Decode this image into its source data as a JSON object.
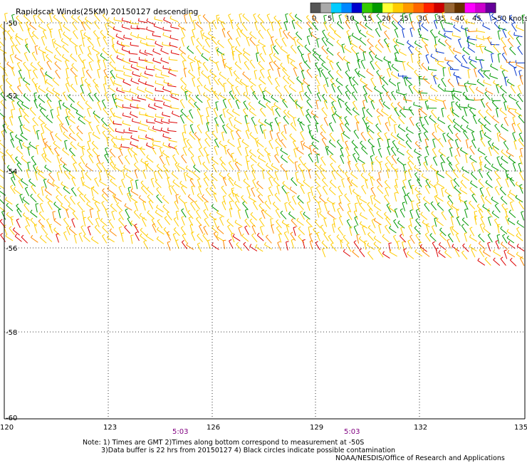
{
  "title": "Rapidscat Winds(25KM) 20150127 descending",
  "legend": {
    "swatch_colors": [
      "#555555",
      "#aaaaaa",
      "#00ccff",
      "#0088ff",
      "#0000cc",
      "#33cc00",
      "#009900",
      "#ffff33",
      "#ffcc00",
      "#ff9900",
      "#ff6600",
      "#ff2200",
      "#cc0000",
      "#996633",
      "#663300",
      "#ff00ff",
      "#cc00cc",
      "#660099"
    ],
    "labels": [
      "0",
      "5",
      "10",
      "15",
      "20",
      "25",
      "30",
      "35",
      "40",
      "45",
      ">50 knots"
    ]
  },
  "axes": {
    "lon_labels": [
      "120",
      "123",
      "126",
      "129",
      "132",
      "135"
    ],
    "lat_labels": [
      "-50",
      "-52",
      "-54",
      "-56",
      "-58",
      "-60"
    ],
    "time_labels": [
      "5:03",
      "5:03"
    ]
  },
  "notes": [
    "Note: 1) Times are GMT 2)Times along bottom correspond to measurement at -50S",
    "3)Data buffer is 22 hrs from 20150127 4) Black circles indicate possible contamination",
    "NOAA/NESDIS/Office of Research and Applications"
  ],
  "wind_palette": {
    "yellow": "#ffcc00",
    "orange": "#ff8800",
    "red": "#dd0000",
    "green": "#009900",
    "blue": "#0033cc",
    "grid": "#000000"
  }
}
